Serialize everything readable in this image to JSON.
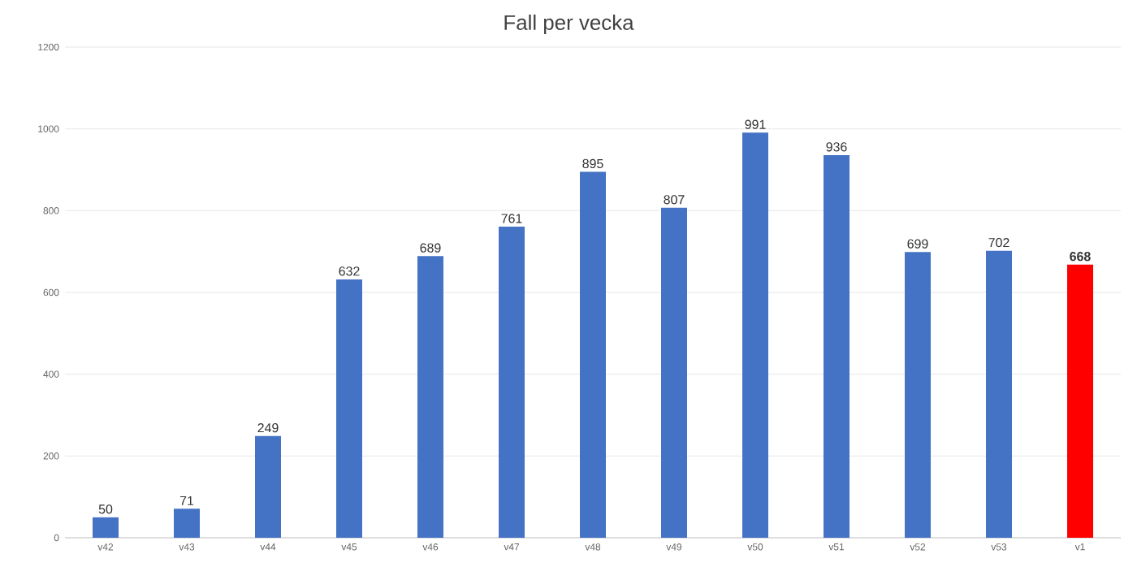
{
  "chart_data": {
    "type": "bar",
    "title": "Fall per vecka",
    "categories": [
      "v42",
      "v43",
      "v44",
      "v45",
      "v46",
      "v47",
      "v48",
      "v49",
      "v50",
      "v51",
      "v52",
      "v53",
      "v1"
    ],
    "values": [
      50,
      71,
      249,
      632,
      689,
      761,
      895,
      807,
      991,
      936,
      699,
      702,
      668
    ],
    "colors": [
      "#4472c4",
      "#4472c4",
      "#4472c4",
      "#4472c4",
      "#4472c4",
      "#4472c4",
      "#4472c4",
      "#4472c4",
      "#4472c4",
      "#4472c4",
      "#4472c4",
      "#4472c4",
      "#ff0000"
    ],
    "value_labels": [
      "50",
      "71",
      "249",
      "632",
      "689",
      "761",
      "895",
      "807",
      "991",
      "936",
      "699",
      "702",
      "**668**"
    ],
    "ylim": [
      0,
      1200
    ],
    "yticks": [
      0,
      200,
      400,
      600,
      800,
      1000,
      1200
    ],
    "grid": "y"
  }
}
